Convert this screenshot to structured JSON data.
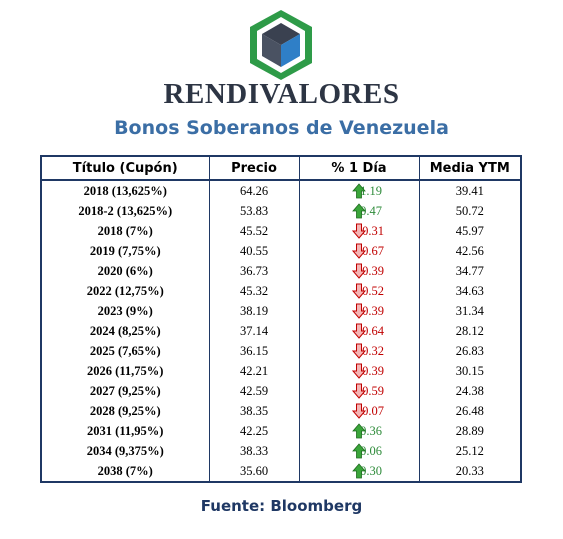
{
  "brand": "RENDIVALORES",
  "subtitle": "Bonos Soberanos de Venezuela",
  "source": "Fuente: Bloomberg",
  "colors": {
    "up": "#2e8b3a",
    "down": "#c00000",
    "border": "#1f3864",
    "logo_green": "#2e9b48",
    "logo_blue": "#2f7fc7"
  },
  "table": {
    "headers": [
      "Título (Cupón)",
      "Precio",
      "% 1 Día",
      "Media YTM"
    ],
    "rows": [
      {
        "title": "2018 (13,625%)",
        "price": "64.26",
        "change": "1.19",
        "dir": "up",
        "ytm": "39.41"
      },
      {
        "title": "2018-2 (13,625%)",
        "price": "53.83",
        "change": "0.47",
        "dir": "up",
        "ytm": "50.72"
      },
      {
        "title": "2018 (7%)",
        "price": "45.52",
        "change": "-0.31",
        "dir": "down",
        "ytm": "45.97"
      },
      {
        "title": "2019 (7,75%)",
        "price": "40.55",
        "change": "-0.67",
        "dir": "down",
        "ytm": "42.56"
      },
      {
        "title": "2020 (6%)",
        "price": "36.73",
        "change": "-0.39",
        "dir": "down",
        "ytm": "34.77"
      },
      {
        "title": "2022 (12,75%)",
        "price": "45.32",
        "change": "-0.52",
        "dir": "down",
        "ytm": "34.63"
      },
      {
        "title": "2023 (9%)",
        "price": "38.19",
        "change": "-0.39",
        "dir": "down",
        "ytm": "31.34"
      },
      {
        "title": "2024 (8,25%)",
        "price": "37.14",
        "change": "-0.64",
        "dir": "down",
        "ytm": "28.12"
      },
      {
        "title": "2025 (7,65%)",
        "price": "36.15",
        "change": "-0.32",
        "dir": "down",
        "ytm": "26.83"
      },
      {
        "title": "2026 (11,75%)",
        "price": "42.21",
        "change": "-0.39",
        "dir": "down",
        "ytm": "30.15"
      },
      {
        "title": "2027 (9,25%)",
        "price": "42.59",
        "change": "-0.59",
        "dir": "down",
        "ytm": "24.38"
      },
      {
        "title": "2028 (9,25%)",
        "price": "38.35",
        "change": "-0.07",
        "dir": "down",
        "ytm": "26.48"
      },
      {
        "title": "2031 (11,95%)",
        "price": "42.25",
        "change": "0.36",
        "dir": "up",
        "ytm": "28.89"
      },
      {
        "title": "2034 (9,375%)",
        "price": "38.33",
        "change": "0.06",
        "dir": "up",
        "ytm": "25.12"
      },
      {
        "title": "2038 (7%)",
        "price": "35.60",
        "change": "0.30",
        "dir": "up",
        "ytm": "20.33"
      }
    ]
  }
}
